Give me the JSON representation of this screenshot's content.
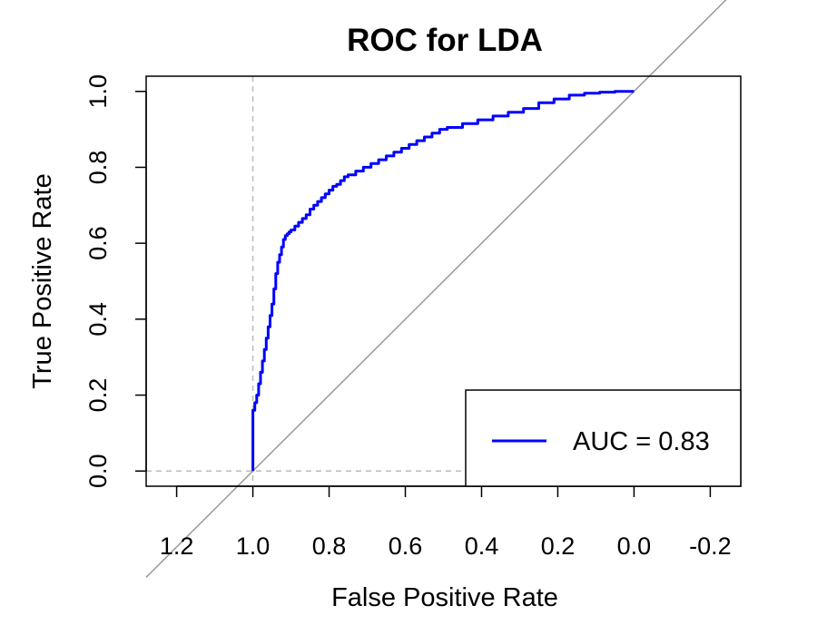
{
  "chart_data": {
    "type": "line",
    "title": "ROC for LDA",
    "xlabel": "False Positive Rate",
    "ylabel": "True Positive Rate",
    "x_axis": {
      "direction": "reversed",
      "xlim": [
        1.28,
        -0.28
      ],
      "ticks": [
        1.2,
        1.0,
        0.8,
        0.6,
        0.4,
        0.2,
        0.0,
        -0.2
      ],
      "tick_labels": [
        "1.2",
        "1.0",
        "0.8",
        "0.6",
        "0.4",
        "0.2",
        "0.0",
        "-0.2"
      ]
    },
    "y_axis": {
      "ylim": [
        -0.04,
        1.04
      ],
      "ticks": [
        0.0,
        0.2,
        0.4,
        0.6,
        0.8,
        1.0
      ],
      "tick_labels": [
        "0.0",
        "0.2",
        "0.4",
        "0.6",
        "0.8",
        "1.0"
      ]
    },
    "series": [
      {
        "name": "AUC = 0.83",
        "color": "#0000ff",
        "x": [
          1.0,
          1.0,
          0.995,
          0.99,
          0.985,
          0.98,
          0.975,
          0.97,
          0.965,
          0.96,
          0.955,
          0.95,
          0.945,
          0.94,
          0.935,
          0.93,
          0.925,
          0.92,
          0.915,
          0.91,
          0.905,
          0.9,
          0.89,
          0.88,
          0.87,
          0.86,
          0.85,
          0.84,
          0.83,
          0.82,
          0.81,
          0.8,
          0.79,
          0.78,
          0.77,
          0.76,
          0.75,
          0.73,
          0.71,
          0.69,
          0.67,
          0.65,
          0.63,
          0.61,
          0.59,
          0.57,
          0.55,
          0.53,
          0.51,
          0.49,
          0.45,
          0.41,
          0.37,
          0.33,
          0.29,
          0.25,
          0.21,
          0.17,
          0.13,
          0.09,
          0.05,
          0.02,
          0.0
        ],
        "y": [
          0.0,
          0.16,
          0.18,
          0.2,
          0.23,
          0.26,
          0.29,
          0.32,
          0.35,
          0.38,
          0.41,
          0.44,
          0.48,
          0.52,
          0.55,
          0.57,
          0.59,
          0.61,
          0.62,
          0.625,
          0.63,
          0.635,
          0.645,
          0.655,
          0.665,
          0.675,
          0.69,
          0.7,
          0.71,
          0.72,
          0.73,
          0.74,
          0.75,
          0.755,
          0.765,
          0.775,
          0.78,
          0.79,
          0.8,
          0.81,
          0.82,
          0.83,
          0.84,
          0.85,
          0.86,
          0.87,
          0.88,
          0.89,
          0.9,
          0.905,
          0.915,
          0.925,
          0.935,
          0.945,
          0.955,
          0.97,
          0.98,
          0.99,
          0.995,
          0.998,
          1.0,
          1.0,
          1.0
        ]
      }
    ],
    "reference_line": {
      "type": "diagonal",
      "from": [
        1.0,
        0.0
      ],
      "to": [
        0.0,
        1.0
      ],
      "color": "#999999"
    },
    "guide_lines": {
      "vertical_x": 1.0,
      "horizontal_y": 0.0,
      "style": "dashed",
      "color": "#bbbbbb"
    },
    "legend": {
      "placement": "bottom-right",
      "entries": [
        "AUC = 0.83"
      ]
    },
    "grid": false
  }
}
